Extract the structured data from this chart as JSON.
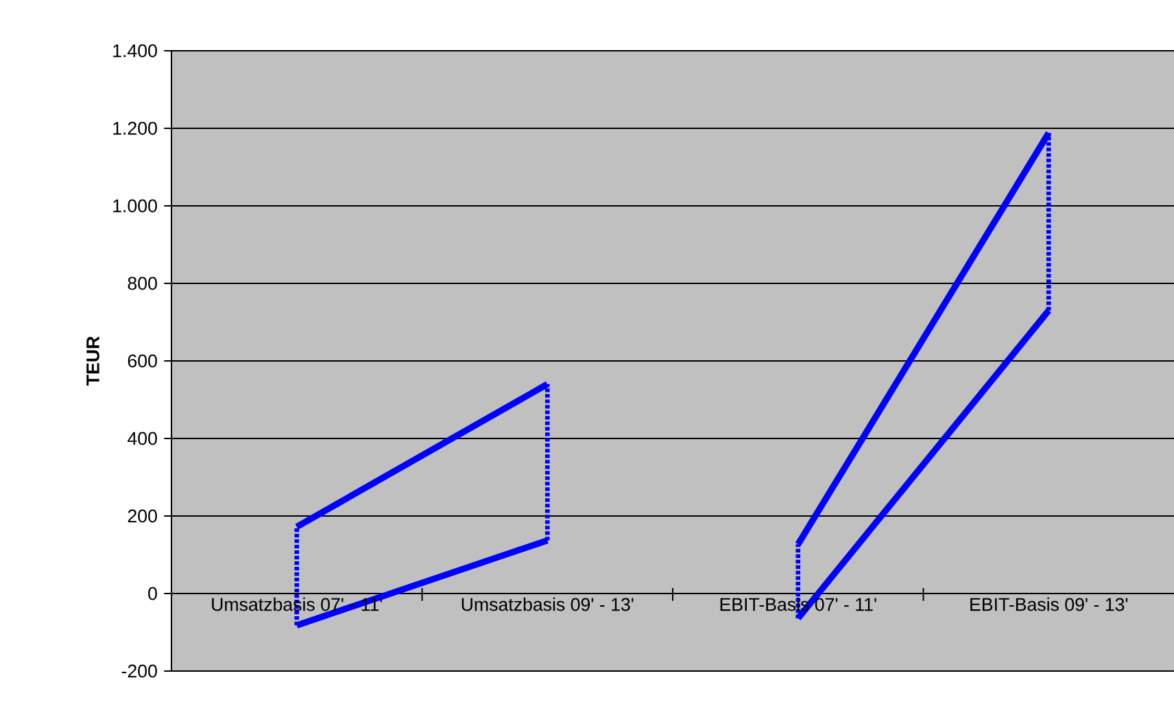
{
  "chart_data": {
    "type": "line",
    "ylabel": "TEUR",
    "categories": [
      "Umsatzbasis 07' - 11'",
      "Umsatzbasis 09' - 13'",
      "EBIT-Basis 07' - 11'",
      "EBIT-Basis 09' - 13'"
    ],
    "series": [
      {
        "color": "#0000ff",
        "values": [
          172,
          540,
          null,
          null
        ],
        "errors": [
          [
            -82,
            172
          ],
          [
            137,
            540
          ],
          null,
          null
        ]
      },
      {
        "color": "#0000ff",
        "values": [
          -82,
          137,
          null,
          null
        ]
      },
      {
        "color": "#0000ff",
        "values": [
          null,
          null,
          127,
          1188
        ],
        "errors": [
          null,
          null,
          [
            -64,
            127
          ],
          [
            730,
            1188
          ]
        ]
      },
      {
        "color": "#0000ff",
        "values": [
          null,
          null,
          -64,
          730
        ]
      }
    ],
    "ylim": [
      -200,
      1400
    ],
    "yticks": [
      {
        "value": -200,
        "label": "-200"
      },
      {
        "value": 0,
        "label": "0"
      },
      {
        "value": 200,
        "label": "200"
      },
      {
        "value": 400,
        "label": "400"
      },
      {
        "value": 600,
        "label": "600"
      },
      {
        "value": 800,
        "label": "800"
      },
      {
        "value": 1000,
        "label": "1.000"
      },
      {
        "value": 1200,
        "label": "1.200"
      },
      {
        "value": 1400,
        "label": "1.400"
      }
    ],
    "grid": "y"
  }
}
